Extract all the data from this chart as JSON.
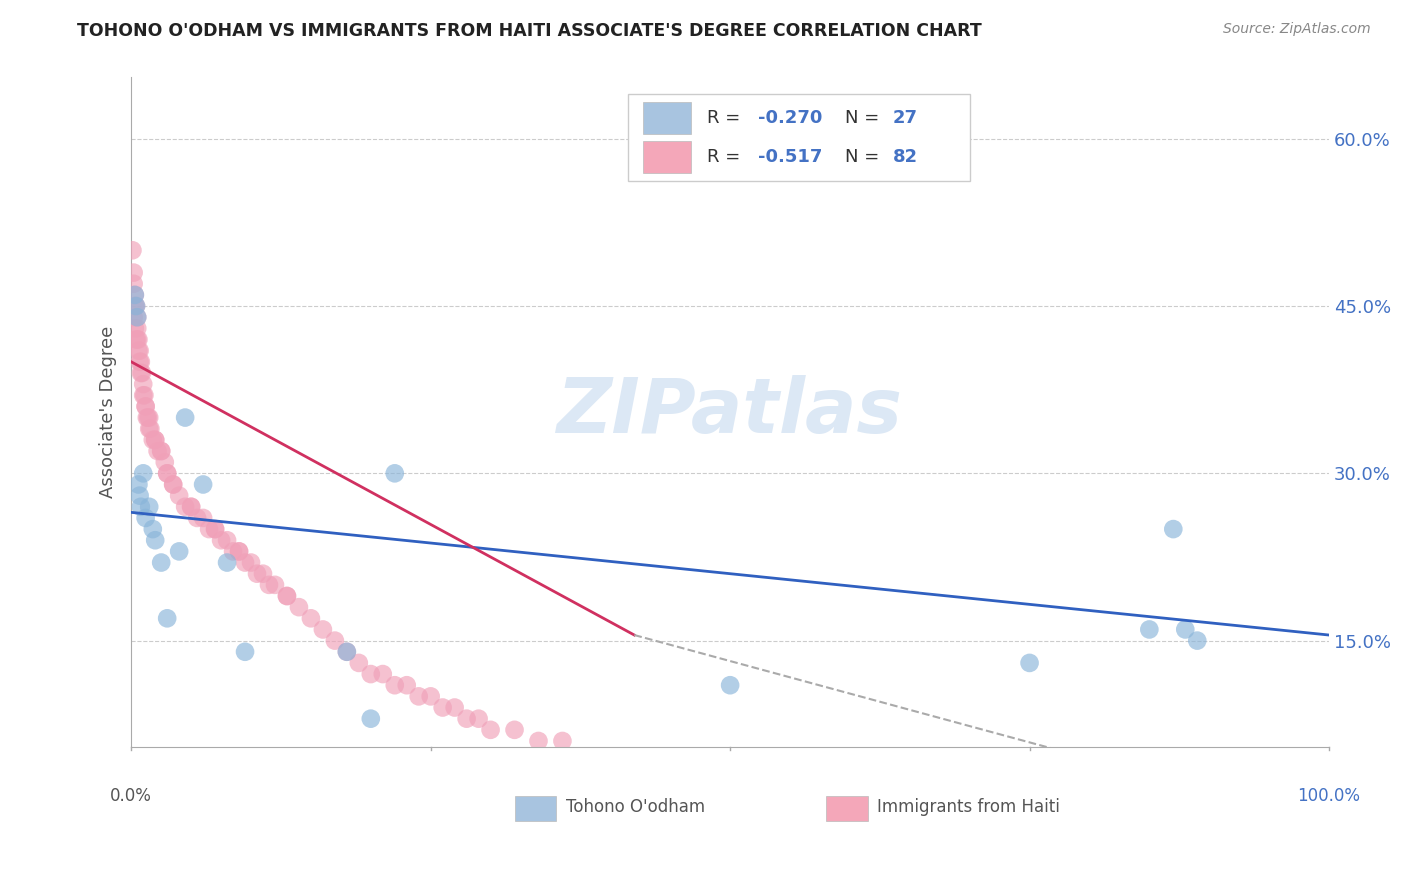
{
  "title": "TOHONO O'ODHAM VS IMMIGRANTS FROM HAITI ASSOCIATE'S DEGREE CORRELATION CHART",
  "source": "Source: ZipAtlas.com",
  "ylabel": "Associate's Degree",
  "y_tick_labels": [
    "15.0%",
    "30.0%",
    "45.0%",
    "60.0%"
  ],
  "y_tick_values": [
    0.15,
    0.3,
    0.45,
    0.6
  ],
  "legend_color1": "#a8c4e0",
  "legend_color2": "#f4a7b9",
  "dot_color_blue": "#89b4d9",
  "dot_color_pink": "#f0a0b8",
  "line_color_blue": "#3060c0",
  "line_color_pink": "#d03060",
  "watermark_color": "#dce8f5",
  "blue_dots_x": [
    0.003,
    0.004,
    0.005,
    0.006,
    0.007,
    0.008,
    0.01,
    0.012,
    0.015,
    0.018,
    0.02,
    0.025,
    0.03,
    0.04,
    0.045,
    0.06,
    0.08,
    0.095,
    0.18,
    0.22,
    0.5,
    0.75,
    0.85,
    0.87,
    0.88,
    0.89,
    0.2
  ],
  "blue_dots_y": [
    0.46,
    0.45,
    0.44,
    0.29,
    0.28,
    0.27,
    0.3,
    0.26,
    0.27,
    0.25,
    0.24,
    0.22,
    0.17,
    0.23,
    0.35,
    0.29,
    0.22,
    0.14,
    0.14,
    0.3,
    0.11,
    0.13,
    0.16,
    0.25,
    0.16,
    0.15,
    0.08
  ],
  "pink_dots_x": [
    0.001,
    0.002,
    0.002,
    0.003,
    0.003,
    0.004,
    0.005,
    0.005,
    0.006,
    0.007,
    0.008,
    0.009,
    0.01,
    0.011,
    0.012,
    0.013,
    0.014,
    0.015,
    0.016,
    0.018,
    0.02,
    0.022,
    0.025,
    0.028,
    0.03,
    0.035,
    0.04,
    0.045,
    0.05,
    0.055,
    0.06,
    0.065,
    0.07,
    0.075,
    0.08,
    0.085,
    0.09,
    0.095,
    0.1,
    0.105,
    0.11,
    0.115,
    0.12,
    0.13,
    0.14,
    0.15,
    0.16,
    0.17,
    0.18,
    0.19,
    0.2,
    0.21,
    0.22,
    0.23,
    0.24,
    0.25,
    0.26,
    0.27,
    0.28,
    0.29,
    0.3,
    0.32,
    0.34,
    0.36,
    0.002,
    0.003,
    0.004,
    0.005,
    0.006,
    0.007,
    0.008,
    0.01,
    0.012,
    0.015,
    0.02,
    0.025,
    0.03,
    0.035,
    0.05,
    0.07,
    0.09,
    0.13
  ],
  "pink_dots_y": [
    0.5,
    0.48,
    0.47,
    0.46,
    0.45,
    0.45,
    0.44,
    0.43,
    0.42,
    0.41,
    0.4,
    0.39,
    0.38,
    0.37,
    0.36,
    0.35,
    0.35,
    0.34,
    0.34,
    0.33,
    0.33,
    0.32,
    0.32,
    0.31,
    0.3,
    0.29,
    0.28,
    0.27,
    0.27,
    0.26,
    0.26,
    0.25,
    0.25,
    0.24,
    0.24,
    0.23,
    0.23,
    0.22,
    0.22,
    0.21,
    0.21,
    0.2,
    0.2,
    0.19,
    0.18,
    0.17,
    0.16,
    0.15,
    0.14,
    0.13,
    0.12,
    0.12,
    0.11,
    0.11,
    0.1,
    0.1,
    0.09,
    0.09,
    0.08,
    0.08,
    0.07,
    0.07,
    0.06,
    0.06,
    0.44,
    0.43,
    0.42,
    0.42,
    0.41,
    0.4,
    0.39,
    0.37,
    0.36,
    0.35,
    0.33,
    0.32,
    0.3,
    0.29,
    0.27,
    0.25,
    0.23,
    0.19
  ],
  "xlim": [
    0.0,
    1.0
  ],
  "ylim": [
    0.055,
    0.655
  ],
  "blue_line_x": [
    0.0,
    1.0
  ],
  "blue_line_y": [
    0.265,
    0.155
  ],
  "pink_line_x": [
    0.0,
    0.42
  ],
  "pink_line_y": [
    0.4,
    0.155
  ],
  "dashed_line_x": [
    0.42,
    0.78
  ],
  "dashed_line_y": [
    0.155,
    0.05
  ],
  "bottom_label_left": "Tohono O'odham",
  "bottom_label_right": "Immigrants from Haiti",
  "legend_R1": "-0.270",
  "legend_N1": "27",
  "legend_R2": "-0.517",
  "legend_N2": "82"
}
